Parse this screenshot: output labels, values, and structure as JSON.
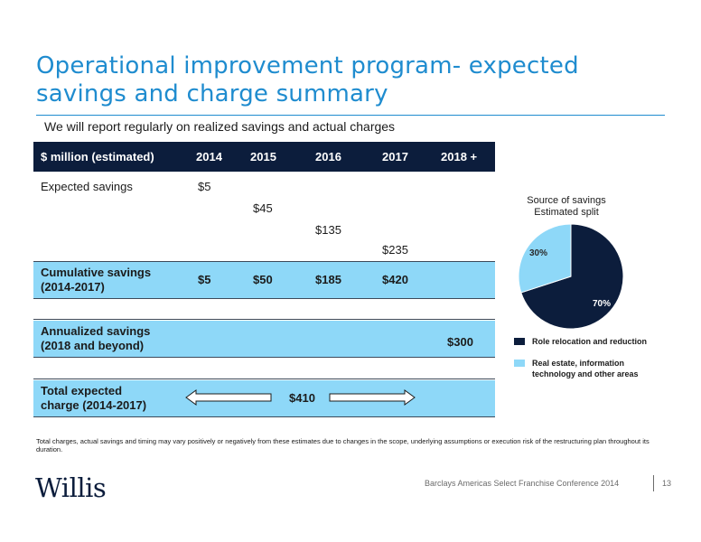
{
  "title": "Operational improvement program- expected savings and charge summary",
  "subtitle": "We will report regularly on realized savings and actual charges",
  "table": {
    "header": [
      "$ million (estimated)",
      "2014",
      "2015",
      "2016",
      "2017",
      "2018 +"
    ],
    "expected_savings_label": "Expected savings",
    "expected_savings": {
      "2014": "$5",
      "2015": "$45",
      "2016": "$135",
      "2017": "$235"
    },
    "cumulative": {
      "label_line1": "Cumulative savings",
      "label_line2": "(2014-2017)",
      "values": {
        "2014": "$5",
        "2015": "$50",
        "2016": "$185",
        "2017": "$420"
      }
    },
    "annualized": {
      "label_line1": "Annualized savings",
      "label_line2": "(2018 and beyond)",
      "value": "$300"
    },
    "charge": {
      "label_line1": "Total expected",
      "label_line2": "charge (2014-2017)",
      "value": "$410"
    }
  },
  "chart_data": {
    "type": "pie",
    "title": "Source of savings",
    "subtitle": "Estimated split",
    "slices": [
      {
        "label": "Role relocation and reduction",
        "value": 70,
        "display": "70%",
        "color": "#0c1d3c"
      },
      {
        "label": "Real estate, information technology and other areas",
        "value": 30,
        "display": "30%",
        "color": "#8ed8f8"
      }
    ],
    "legend_position": "bottom"
  },
  "legend": {
    "item1": "Role relocation and reduction",
    "item2_line1": "Real estate, information",
    "item2_line2": "technology and other areas"
  },
  "footnote": "Total charges, actual savings and timing may vary positively or negatively from these estimates due to changes in the scope, underlying assumptions or execution risk of the restructuring plan throughout its duration.",
  "footer": {
    "logo_text": "Willis",
    "conference": "Barclays Americas Select Franchise Conference 2014",
    "page": "13"
  }
}
